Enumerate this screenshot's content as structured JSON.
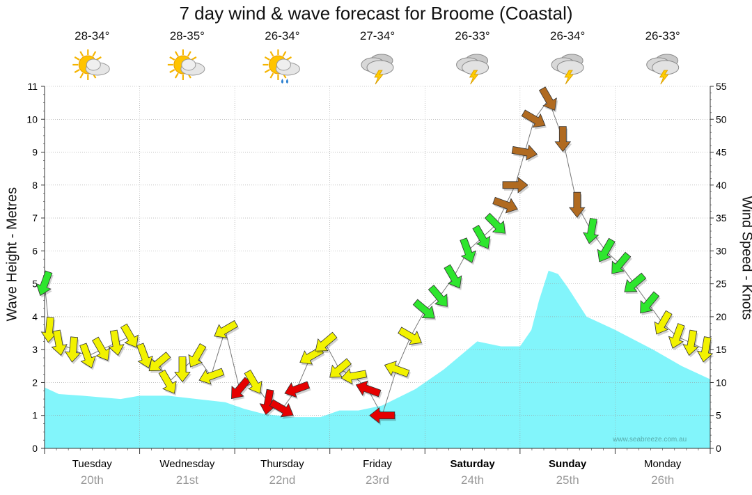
{
  "colors": {
    "wave_fill": "#82f5fb",
    "wind_calm": "#e60000",
    "wind_light": "#f2f200",
    "wind_moderate": "#2ee62e",
    "wind_strong": "#b06a20",
    "grid": "#999999"
  },
  "watermark": "www.seabreeze.com.au",
  "chart_data": {
    "type": "area",
    "title": "7 day wind & wave forecast for Broome (Coastal)",
    "ylabel_left": "Wave Height - Metres",
    "ylabel_right": "Wind Speed - Knots",
    "ylim_left": [
      0,
      11
    ],
    "ylim_right": [
      0,
      55
    ],
    "yticks_left": [
      "0",
      "1",
      "2",
      "3",
      "4",
      "5",
      "6",
      "7",
      "8",
      "9",
      "10",
      "11"
    ],
    "yticks_right": [
      "0",
      "5",
      "10",
      "15",
      "20",
      "25",
      "30",
      "35",
      "40",
      "45",
      "50",
      "55"
    ],
    "days": [
      {
        "name": "Tuesday",
        "date": "20th",
        "temp": "28-34°",
        "weather": "partly-cloudy",
        "bold": false
      },
      {
        "name": "Wednesday",
        "date": "21st",
        "temp": "28-35°",
        "weather": "partly-cloudy",
        "bold": false
      },
      {
        "name": "Thursday",
        "date": "22nd",
        "temp": "26-34°",
        "weather": "showers",
        "bold": false
      },
      {
        "name": "Friday",
        "date": "23rd",
        "temp": "27-34°",
        "weather": "thunderstorm",
        "bold": false
      },
      {
        "name": "Saturday",
        "date": "24th",
        "temp": "26-33°",
        "weather": "thunderstorm",
        "bold": true
      },
      {
        "name": "Sunday",
        "date": "25th",
        "temp": "26-34°",
        "weather": "thunderstorm",
        "bold": true
      },
      {
        "name": "Monday",
        "date": "26th",
        "temp": "26-33°",
        "weather": "thunderstorm",
        "bold": false
      }
    ],
    "wave_height": {
      "x_days": [
        0,
        0.15,
        0.4,
        0.8,
        1.0,
        1.3,
        1.6,
        1.9,
        2.1,
        2.3,
        2.6,
        2.9,
        3.1,
        3.3,
        3.55,
        3.9,
        4.2,
        4.55,
        4.8,
        5.0,
        5.12,
        5.2,
        5.3,
        5.4,
        5.5,
        5.7,
        6.0,
        6.4,
        6.7,
        7.0
      ],
      "values": [
        1.85,
        1.65,
        1.6,
        1.5,
        1.6,
        1.6,
        1.5,
        1.4,
        1.2,
        1.05,
        0.95,
        0.95,
        1.15,
        1.15,
        1.3,
        1.8,
        2.4,
        3.25,
        3.1,
        3.1,
        3.6,
        4.5,
        5.4,
        5.3,
        4.9,
        4.0,
        3.6,
        3.0,
        2.5,
        2.1
      ]
    },
    "wind": {
      "x_days": [
        0.0,
        0.05,
        0.15,
        0.3,
        0.45,
        0.6,
        0.75,
        0.9,
        1.05,
        1.2,
        1.3,
        1.45,
        1.6,
        1.75,
        1.9,
        2.05,
        2.2,
        2.35,
        2.5,
        2.65,
        2.8,
        2.95,
        3.1,
        3.25,
        3.4,
        3.55,
        3.7,
        3.85,
        4.0,
        4.15,
        4.3,
        4.45,
        4.6,
        4.75,
        4.85,
        4.95,
        5.05,
        5.15,
        5.3,
        5.45,
        5.6,
        5.75,
        5.9,
        6.05,
        6.2,
        6.35,
        6.5,
        6.65,
        6.8,
        6.95
      ],
      "speeds": [
        25,
        18,
        16,
        15,
        14,
        15,
        16,
        17,
        14,
        13,
        10,
        12,
        14,
        11,
        18,
        9,
        10,
        7,
        6,
        9,
        14,
        16,
        12,
        11,
        9,
        5,
        12,
        17,
        21,
        23,
        26,
        30,
        32,
        34,
        37,
        40,
        45,
        50,
        53,
        47,
        37,
        33,
        30,
        28,
        25,
        22,
        19,
        17,
        16,
        15
      ],
      "directions": [
        110,
        95,
        80,
        95,
        70,
        60,
        80,
        60,
        70,
        140,
        60,
        90,
        120,
        160,
        150,
        130,
        60,
        100,
        30,
        160,
        150,
        140,
        140,
        170,
        200,
        180,
        200,
        30,
        40,
        50,
        60,
        70,
        60,
        45,
        20,
        0,
        10,
        30,
        60,
        90,
        90,
        100,
        120,
        130,
        140,
        130,
        120,
        110,
        100,
        100
      ]
    }
  }
}
